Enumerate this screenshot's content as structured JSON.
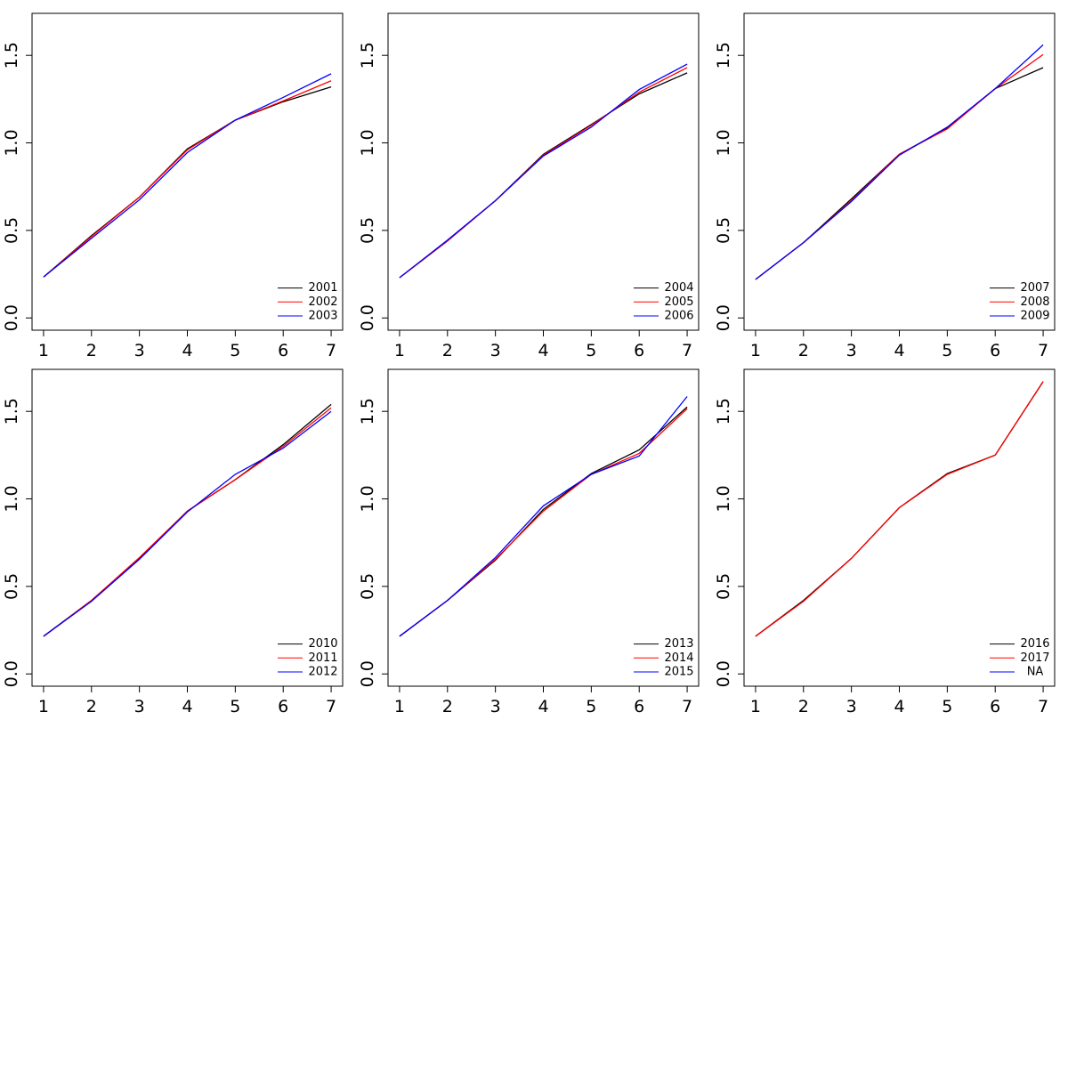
{
  "chart_data": [
    {
      "type": "line",
      "x": [
        1,
        2,
        3,
        4,
        5,
        6,
        7
      ],
      "xlim": [
        0.76,
        7.24
      ],
      "ylim": [
        -0.07,
        1.74
      ],
      "xticks": [
        1,
        2,
        3,
        4,
        5,
        6,
        7
      ],
      "yticks": [
        {
          "value": 0,
          "label": "0.0"
        },
        0.5,
        {
          "value": 1,
          "label": "1.0"
        },
        1.5
      ],
      "legend": "bottomright",
      "series": [
        {
          "name": "2001",
          "color": "#000000",
          "values": [
            0.234,
            0.47,
            0.69,
            0.966,
            1.13,
            1.235,
            1.32
          ]
        },
        {
          "name": "2002",
          "color": "#ff0000",
          "values": [
            0.234,
            0.465,
            0.69,
            0.96,
            1.13,
            1.24,
            1.355
          ]
        },
        {
          "name": "2003",
          "color": "#0000ff",
          "values": [
            0.234,
            0.455,
            0.675,
            0.945,
            1.13,
            1.26,
            1.395
          ]
        }
      ]
    },
    {
      "type": "line",
      "x": [
        1,
        2,
        3,
        4,
        5,
        6,
        7
      ],
      "xlim": [
        0.76,
        7.24
      ],
      "ylim": [
        -0.07,
        1.74
      ],
      "xticks": [
        1,
        2,
        3,
        4,
        5,
        6,
        7
      ],
      "yticks": [
        {
          "value": 0,
          "label": "0.0"
        },
        0.5,
        {
          "value": 1,
          "label": "1.0"
        },
        1.5
      ],
      "legend": "bottomright",
      "series": [
        {
          "name": "2004",
          "color": "#000000",
          "values": [
            0.23,
            0.44,
            0.67,
            0.935,
            1.105,
            1.28,
            1.4
          ]
        },
        {
          "name": "2005",
          "color": "#ff0000",
          "values": [
            0.23,
            0.44,
            0.67,
            0.93,
            1.1,
            1.29,
            1.43
          ]
        },
        {
          "name": "2006",
          "color": "#0000ff",
          "values": [
            0.23,
            0.445,
            0.67,
            0.925,
            1.09,
            1.305,
            1.45
          ]
        }
      ]
    },
    {
      "type": "line",
      "x": [
        1,
        2,
        3,
        4,
        5,
        6,
        7
      ],
      "xlim": [
        0.76,
        7.24
      ],
      "ylim": [
        -0.07,
        1.74
      ],
      "xticks": [
        1,
        2,
        3,
        4,
        5,
        6,
        7
      ],
      "yticks": [
        {
          "value": 0,
          "label": "0.0"
        },
        0.5,
        {
          "value": 1,
          "label": "1.0"
        },
        1.5
      ],
      "legend": "bottomright",
      "series": [
        {
          "name": "2007",
          "color": "#000000",
          "values": [
            0.22,
            0.43,
            0.68,
            0.935,
            1.085,
            1.31,
            1.43
          ]
        },
        {
          "name": "2008",
          "color": "#ff0000",
          "values": [
            0.22,
            0.43,
            0.67,
            0.935,
            1.08,
            1.31,
            1.505
          ]
        },
        {
          "name": "2009",
          "color": "#0000ff",
          "values": [
            0.22,
            0.43,
            0.665,
            0.93,
            1.09,
            1.31,
            1.56
          ]
        }
      ]
    },
    {
      "type": "line",
      "x": [
        1,
        2,
        3,
        4,
        5,
        6,
        7
      ],
      "xlim": [
        0.76,
        7.24
      ],
      "ylim": [
        -0.07,
        1.74
      ],
      "xticks": [
        1,
        2,
        3,
        4,
        5,
        6,
        7
      ],
      "yticks": [
        {
          "value": 0,
          "label": "0.0"
        },
        0.5,
        {
          "value": 1,
          "label": "1.0"
        },
        1.5
      ],
      "legend": "bottomright",
      "series": [
        {
          "name": "2010",
          "color": "#000000",
          "values": [
            0.215,
            0.42,
            0.66,
            0.93,
            1.11,
            1.31,
            1.54
          ]
        },
        {
          "name": "2011",
          "color": "#ff0000",
          "values": [
            0.215,
            0.42,
            0.665,
            0.93,
            1.11,
            1.3,
            1.52
          ]
        },
        {
          "name": "2012",
          "color": "#0000ff",
          "values": [
            0.215,
            0.415,
            0.655,
            0.925,
            1.14,
            1.29,
            1.5
          ]
        }
      ]
    },
    {
      "type": "line",
      "x": [
        1,
        2,
        3,
        4,
        5,
        6,
        7
      ],
      "xlim": [
        0.76,
        7.24
      ],
      "ylim": [
        -0.07,
        1.74
      ],
      "xticks": [
        1,
        2,
        3,
        4,
        5,
        6,
        7
      ],
      "yticks": [
        {
          "value": 0,
          "label": "0.0"
        },
        0.5,
        {
          "value": 1,
          "label": "1.0"
        },
        1.5
      ],
      "legend": "bottomright",
      "series": [
        {
          "name": "2013",
          "color": "#000000",
          "values": [
            0.215,
            0.42,
            0.65,
            0.94,
            1.145,
            1.28,
            1.525
          ]
        },
        {
          "name": "2014",
          "color": "#ff0000",
          "values": [
            0.215,
            0.42,
            0.655,
            0.93,
            1.14,
            1.26,
            1.515
          ]
        },
        {
          "name": "2015",
          "color": "#0000ff",
          "values": [
            0.215,
            0.42,
            0.665,
            0.96,
            1.14,
            1.245,
            1.585
          ]
        }
      ]
    },
    {
      "type": "line",
      "x": [
        1,
        2,
        3,
        4,
        5,
        6,
        7
      ],
      "xlim": [
        0.76,
        7.24
      ],
      "ylim": [
        -0.07,
        1.74
      ],
      "xticks": [
        1,
        2,
        3,
        4,
        5,
        6,
        7
      ],
      "yticks": [
        {
          "value": 0,
          "label": "0.0"
        },
        0.5,
        {
          "value": 1,
          "label": "1.0"
        },
        1.5
      ],
      "legend": "bottomright",
      "series": [
        {
          "name": "2016",
          "color": "#000000",
          "values": [
            0.215,
            0.42,
            0.66,
            0.95,
            1.145,
            1.25,
            1.67
          ]
        },
        {
          "name": "2017",
          "color": "#ff0000",
          "values": [
            0.215,
            0.415,
            0.66,
            0.95,
            1.14,
            1.25,
            1.67
          ]
        },
        {
          "name": "NA",
          "color": "#0000ff",
          "values": [
            null,
            null,
            null,
            null,
            null,
            null,
            null
          ]
        }
      ]
    }
  ]
}
